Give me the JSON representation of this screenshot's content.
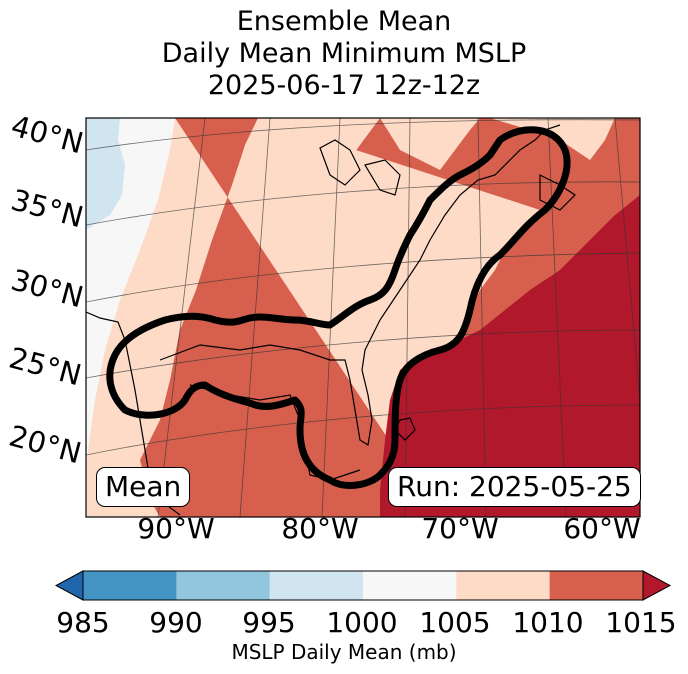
{
  "title": {
    "line1": "Ensemble Mean",
    "line2": "Daily Mean Minimum MSLP",
    "line3": "2025-06-17 12z-12z"
  },
  "map": {
    "lat_labels": [
      "40°N",
      "35°N",
      "30°N",
      "25°N",
      "20°N"
    ],
    "lon_labels": [
      "90°W",
      "80°W",
      "70°W",
      "60°W"
    ],
    "mean_label": "Mean",
    "run_label": "Run: 2025-05-25"
  },
  "colorbar": {
    "ticks": [
      "985",
      "990",
      "995",
      "1000",
      "1005",
      "1010",
      "1015"
    ],
    "label": "MSLP Daily Mean (mb)",
    "colors": [
      "#2166ac",
      "#4393c3",
      "#92c5de",
      "#d1e5f0",
      "#f7f7f7",
      "#fddbc7",
      "#d6604d",
      "#b2182b"
    ]
  },
  "colors": {
    "band_1000_1005": "#f7f7f7",
    "band_995_1000": "#d1e5f0",
    "band_1005_1010": "#fddbc7",
    "band_1010_1015": "#d6604d",
    "band_above_1015": "#b2182b",
    "contour": "#000000"
  }
}
